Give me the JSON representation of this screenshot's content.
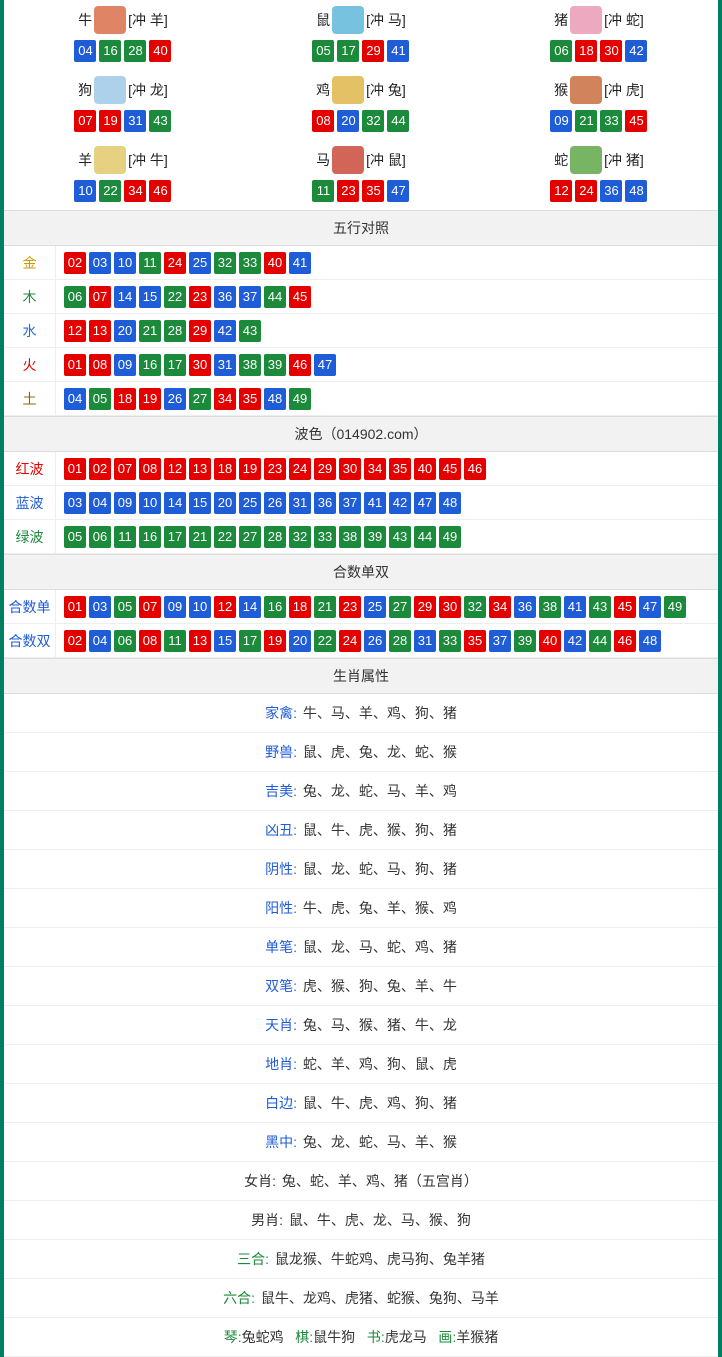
{
  "colors": {
    "red": "#e50000",
    "blue": "#1f5cd7",
    "green": "#1b8a3a",
    "header_bg": "#f2f2f2",
    "border_outer": "#008060",
    "gold": "#c79a00",
    "wood": "#1b8a3a",
    "water": "#1f6fd7",
    "fire": "#e50000",
    "earth": "#8a6a00"
  },
  "ball_color_map": {
    "red": [
      "01",
      "02",
      "07",
      "08",
      "12",
      "13",
      "18",
      "19",
      "23",
      "24",
      "29",
      "30",
      "34",
      "35",
      "40",
      "45",
      "46"
    ],
    "blue": [
      "03",
      "04",
      "09",
      "10",
      "14",
      "15",
      "20",
      "25",
      "26",
      "31",
      "36",
      "37",
      "41",
      "42",
      "47",
      "48"
    ],
    "green": [
      "05",
      "06",
      "11",
      "16",
      "17",
      "21",
      "22",
      "27",
      "28",
      "32",
      "33",
      "38",
      "39",
      "43",
      "44",
      "49"
    ]
  },
  "zodiac": [
    {
      "name": "牛",
      "clash": "[冲 羊]",
      "icon_color": "#d96f4a",
      "balls": [
        "04",
        "16",
        "28",
        "40"
      ]
    },
    {
      "name": "鼠",
      "clash": "[冲 马]",
      "icon_color": "#5fb9d9",
      "balls": [
        "05",
        "17",
        "29",
        "41"
      ]
    },
    {
      "name": "猪",
      "clash": "[冲 蛇]",
      "icon_color": "#e99ab5",
      "balls": [
        "06",
        "18",
        "30",
        "42"
      ]
    },
    {
      "name": "狗",
      "clash": "[冲 龙]",
      "icon_color": "#9fc9e8",
      "balls": [
        "07",
        "19",
        "31",
        "43"
      ]
    },
    {
      "name": "鸡",
      "clash": "[冲 兔]",
      "icon_color": "#e1b64a",
      "balls": [
        "08",
        "20",
        "32",
        "44"
      ]
    },
    {
      "name": "猴",
      "clash": "[冲 虎]",
      "icon_color": "#c96f3f",
      "balls": [
        "09",
        "21",
        "33",
        "45"
      ]
    },
    {
      "name": "羊",
      "clash": "[冲 牛]",
      "icon_color": "#e0c96a",
      "balls": [
        "10",
        "22",
        "34",
        "46"
      ]
    },
    {
      "name": "马",
      "clash": "[冲 鼠]",
      "icon_color": "#c94a3a",
      "balls": [
        "11",
        "23",
        "35",
        "47"
      ]
    },
    {
      "name": "蛇",
      "clash": "[冲 猪]",
      "icon_color": "#5fa84a",
      "balls": [
        "12",
        "24",
        "36",
        "48"
      ]
    }
  ],
  "sections": {
    "wuxing": {
      "title": "五行对照",
      "rows": [
        {
          "label": "金",
          "label_class": "lbl-gold",
          "balls": [
            "02",
            "03",
            "10",
            "11",
            "24",
            "25",
            "32",
            "33",
            "40",
            "41"
          ]
        },
        {
          "label": "木",
          "label_class": "lbl-wood",
          "balls": [
            "06",
            "07",
            "14",
            "15",
            "22",
            "23",
            "36",
            "37",
            "44",
            "45"
          ]
        },
        {
          "label": "水",
          "label_class": "lbl-water",
          "balls": [
            "12",
            "13",
            "20",
            "21",
            "28",
            "29",
            "42",
            "43"
          ]
        },
        {
          "label": "火",
          "label_class": "lbl-fire",
          "balls": [
            "01",
            "08",
            "09",
            "16",
            "17",
            "30",
            "31",
            "38",
            "39",
            "46",
            "47"
          ]
        },
        {
          "label": "土",
          "label_class": "lbl-earth",
          "balls": [
            "04",
            "05",
            "18",
            "19",
            "26",
            "27",
            "34",
            "35",
            "48",
            "49"
          ]
        }
      ]
    },
    "bose": {
      "title": "波色（014902.com）",
      "rows": [
        {
          "label": "红波",
          "label_class": "lbl-red",
          "balls": [
            "01",
            "02",
            "07",
            "08",
            "12",
            "13",
            "18",
            "19",
            "23",
            "24",
            "29",
            "30",
            "34",
            "35",
            "40",
            "45",
            "46"
          ]
        },
        {
          "label": "蓝波",
          "label_class": "lbl-blue",
          "balls": [
            "03",
            "04",
            "09",
            "10",
            "14",
            "15",
            "20",
            "25",
            "26",
            "31",
            "36",
            "37",
            "41",
            "42",
            "47",
            "48"
          ]
        },
        {
          "label": "绿波",
          "label_class": "lbl-green",
          "balls": [
            "05",
            "06",
            "11",
            "16",
            "17",
            "21",
            "22",
            "27",
            "28",
            "32",
            "33",
            "38",
            "39",
            "43",
            "44",
            "49"
          ]
        }
      ]
    },
    "heshu": {
      "title": "合数单双",
      "rows": [
        {
          "label": "合数单",
          "label_class": "lbl-blue",
          "balls": [
            "01",
            "03",
            "05",
            "07",
            "09",
            "10",
            "12",
            "14",
            "16",
            "18",
            "21",
            "23",
            "25",
            "27",
            "29",
            "30",
            "32",
            "34",
            "36",
            "38",
            "41",
            "43",
            "45",
            "47",
            "49"
          ]
        },
        {
          "label": "合数双",
          "label_class": "lbl-blue",
          "balls": [
            "02",
            "04",
            "06",
            "08",
            "11",
            "13",
            "15",
            "17",
            "19",
            "20",
            "22",
            "24",
            "26",
            "28",
            "31",
            "33",
            "35",
            "37",
            "39",
            "40",
            "42",
            "44",
            "46",
            "48"
          ]
        }
      ]
    },
    "shuxing": {
      "title": "生肖属性",
      "rows": [
        {
          "label": "家禽:",
          "label_color": "#1f5cd7",
          "value": "牛、马、羊、鸡、狗、猪"
        },
        {
          "label": "野兽:",
          "label_color": "#1f5cd7",
          "value": "鼠、虎、兔、龙、蛇、猴"
        },
        {
          "label": "吉美:",
          "label_color": "#1f5cd7",
          "value": "兔、龙、蛇、马、羊、鸡"
        },
        {
          "label": "凶丑:",
          "label_color": "#1f5cd7",
          "value": "鼠、牛、虎、猴、狗、猪"
        },
        {
          "label": "阴性:",
          "label_color": "#1f5cd7",
          "value": "鼠、龙、蛇、马、狗、猪"
        },
        {
          "label": "阳性:",
          "label_color": "#1f5cd7",
          "value": "牛、虎、兔、羊、猴、鸡"
        },
        {
          "label": "单笔:",
          "label_color": "#1f5cd7",
          "value": "鼠、龙、马、蛇、鸡、猪"
        },
        {
          "label": "双笔:",
          "label_color": "#1f5cd7",
          "value": "虎、猴、狗、兔、羊、牛"
        },
        {
          "label": "天肖:",
          "label_color": "#1f5cd7",
          "value": "兔、马、猴、猪、牛、龙"
        },
        {
          "label": "地肖:",
          "label_color": "#1f5cd7",
          "value": "蛇、羊、鸡、狗、鼠、虎"
        },
        {
          "label": "白边:",
          "label_color": "#1f5cd7",
          "value": "鼠、牛、虎、鸡、狗、猪"
        },
        {
          "label": "黑中:",
          "label_color": "#1f5cd7",
          "value": "兔、龙、蛇、马、羊、猴"
        },
        {
          "label": "女肖:",
          "label_color": "#333333",
          "value": "兔、蛇、羊、鸡、猪（五宫肖）"
        },
        {
          "label": "男肖:",
          "label_color": "#333333",
          "value": "鼠、牛、虎、龙、马、猴、狗"
        },
        {
          "label": "三合:",
          "label_color": "#1b8a3a",
          "value": "鼠龙猴、牛蛇鸡、虎马狗、兔羊猪"
        },
        {
          "label": "六合:",
          "label_color": "#1b8a3a",
          "value": "鼠牛、龙鸡、虎猪、蛇猴、兔狗、马羊"
        }
      ],
      "bottom": {
        "style": "multi",
        "items": [
          {
            "label": "琴:",
            "label_color": "#1b8a3a",
            "value": "兔蛇鸡"
          },
          {
            "label": "棋:",
            "label_color": "#1b8a3a",
            "value": "鼠牛狗"
          },
          {
            "label": "书:",
            "label_color": "#1b8a3a",
            "value": "虎龙马"
          },
          {
            "label": "画:",
            "label_color": "#1b8a3a",
            "value": "羊猴猪"
          }
        ]
      }
    }
  }
}
